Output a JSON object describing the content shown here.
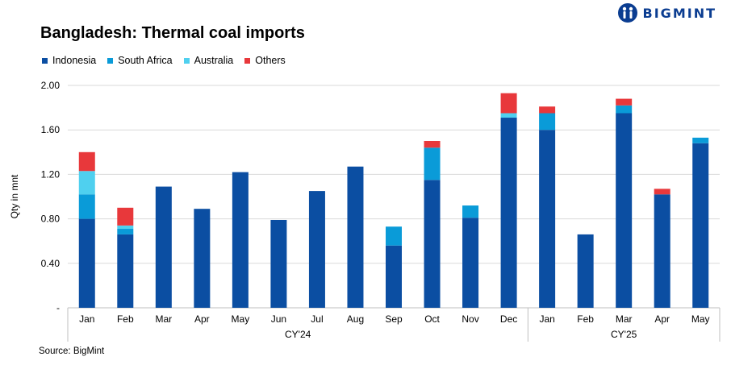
{
  "brand": "BIGMINT",
  "source": "Source: BigMint",
  "chart_data": {
    "type": "bar",
    "stacked": true,
    "title": "Bangladesh: Thermal coal imports",
    "ylabel": "Qty in mnt",
    "xlabel": "",
    "ylim": [
      0,
      2.0
    ],
    "yticks": [
      "-",
      "0.40",
      "0.80",
      "1.20",
      "1.60",
      "2.00"
    ],
    "grid": "horizontal",
    "legend_position": "top-left",
    "categories": [
      "Jan",
      "Feb",
      "Mar",
      "Apr",
      "May",
      "Jun",
      "Jul",
      "Aug",
      "Sep",
      "Oct",
      "Nov",
      "Dec",
      "Jan",
      "Feb",
      "Mar",
      "Apr",
      "May"
    ],
    "groups": [
      {
        "label": "CY'24",
        "start": 0,
        "end": 11
      },
      {
        "label": "CY'25",
        "start": 12,
        "end": 16
      }
    ],
    "series": [
      {
        "name": "Indonesia",
        "color": "#0b4ea2",
        "values": [
          0.8,
          0.66,
          1.09,
          0.89,
          1.22,
          0.79,
          1.05,
          1.27,
          0.56,
          1.15,
          0.81,
          1.71,
          1.6,
          0.66,
          1.75,
          1.02,
          1.48
        ]
      },
      {
        "name": "South Africa",
        "color": "#0a9bd8",
        "values": [
          0.22,
          0.05,
          0,
          0,
          0,
          0,
          0,
          0,
          0.17,
          0.29,
          0.11,
          0,
          0.15,
          0,
          0.07,
          0,
          0.05
        ]
      },
      {
        "name": "Australia",
        "color": "#4fd0ef",
        "values": [
          0.21,
          0.03,
          0,
          0,
          0,
          0,
          0,
          0,
          0,
          0,
          0,
          0.04,
          0,
          0,
          0,
          0,
          0
        ]
      },
      {
        "name": "Others",
        "color": "#e8383b",
        "values": [
          0.17,
          0.16,
          0,
          0,
          0,
          0,
          0,
          0,
          0,
          0.06,
          0,
          0.18,
          0.06,
          0,
          0.06,
          0.05,
          0
        ]
      }
    ]
  }
}
